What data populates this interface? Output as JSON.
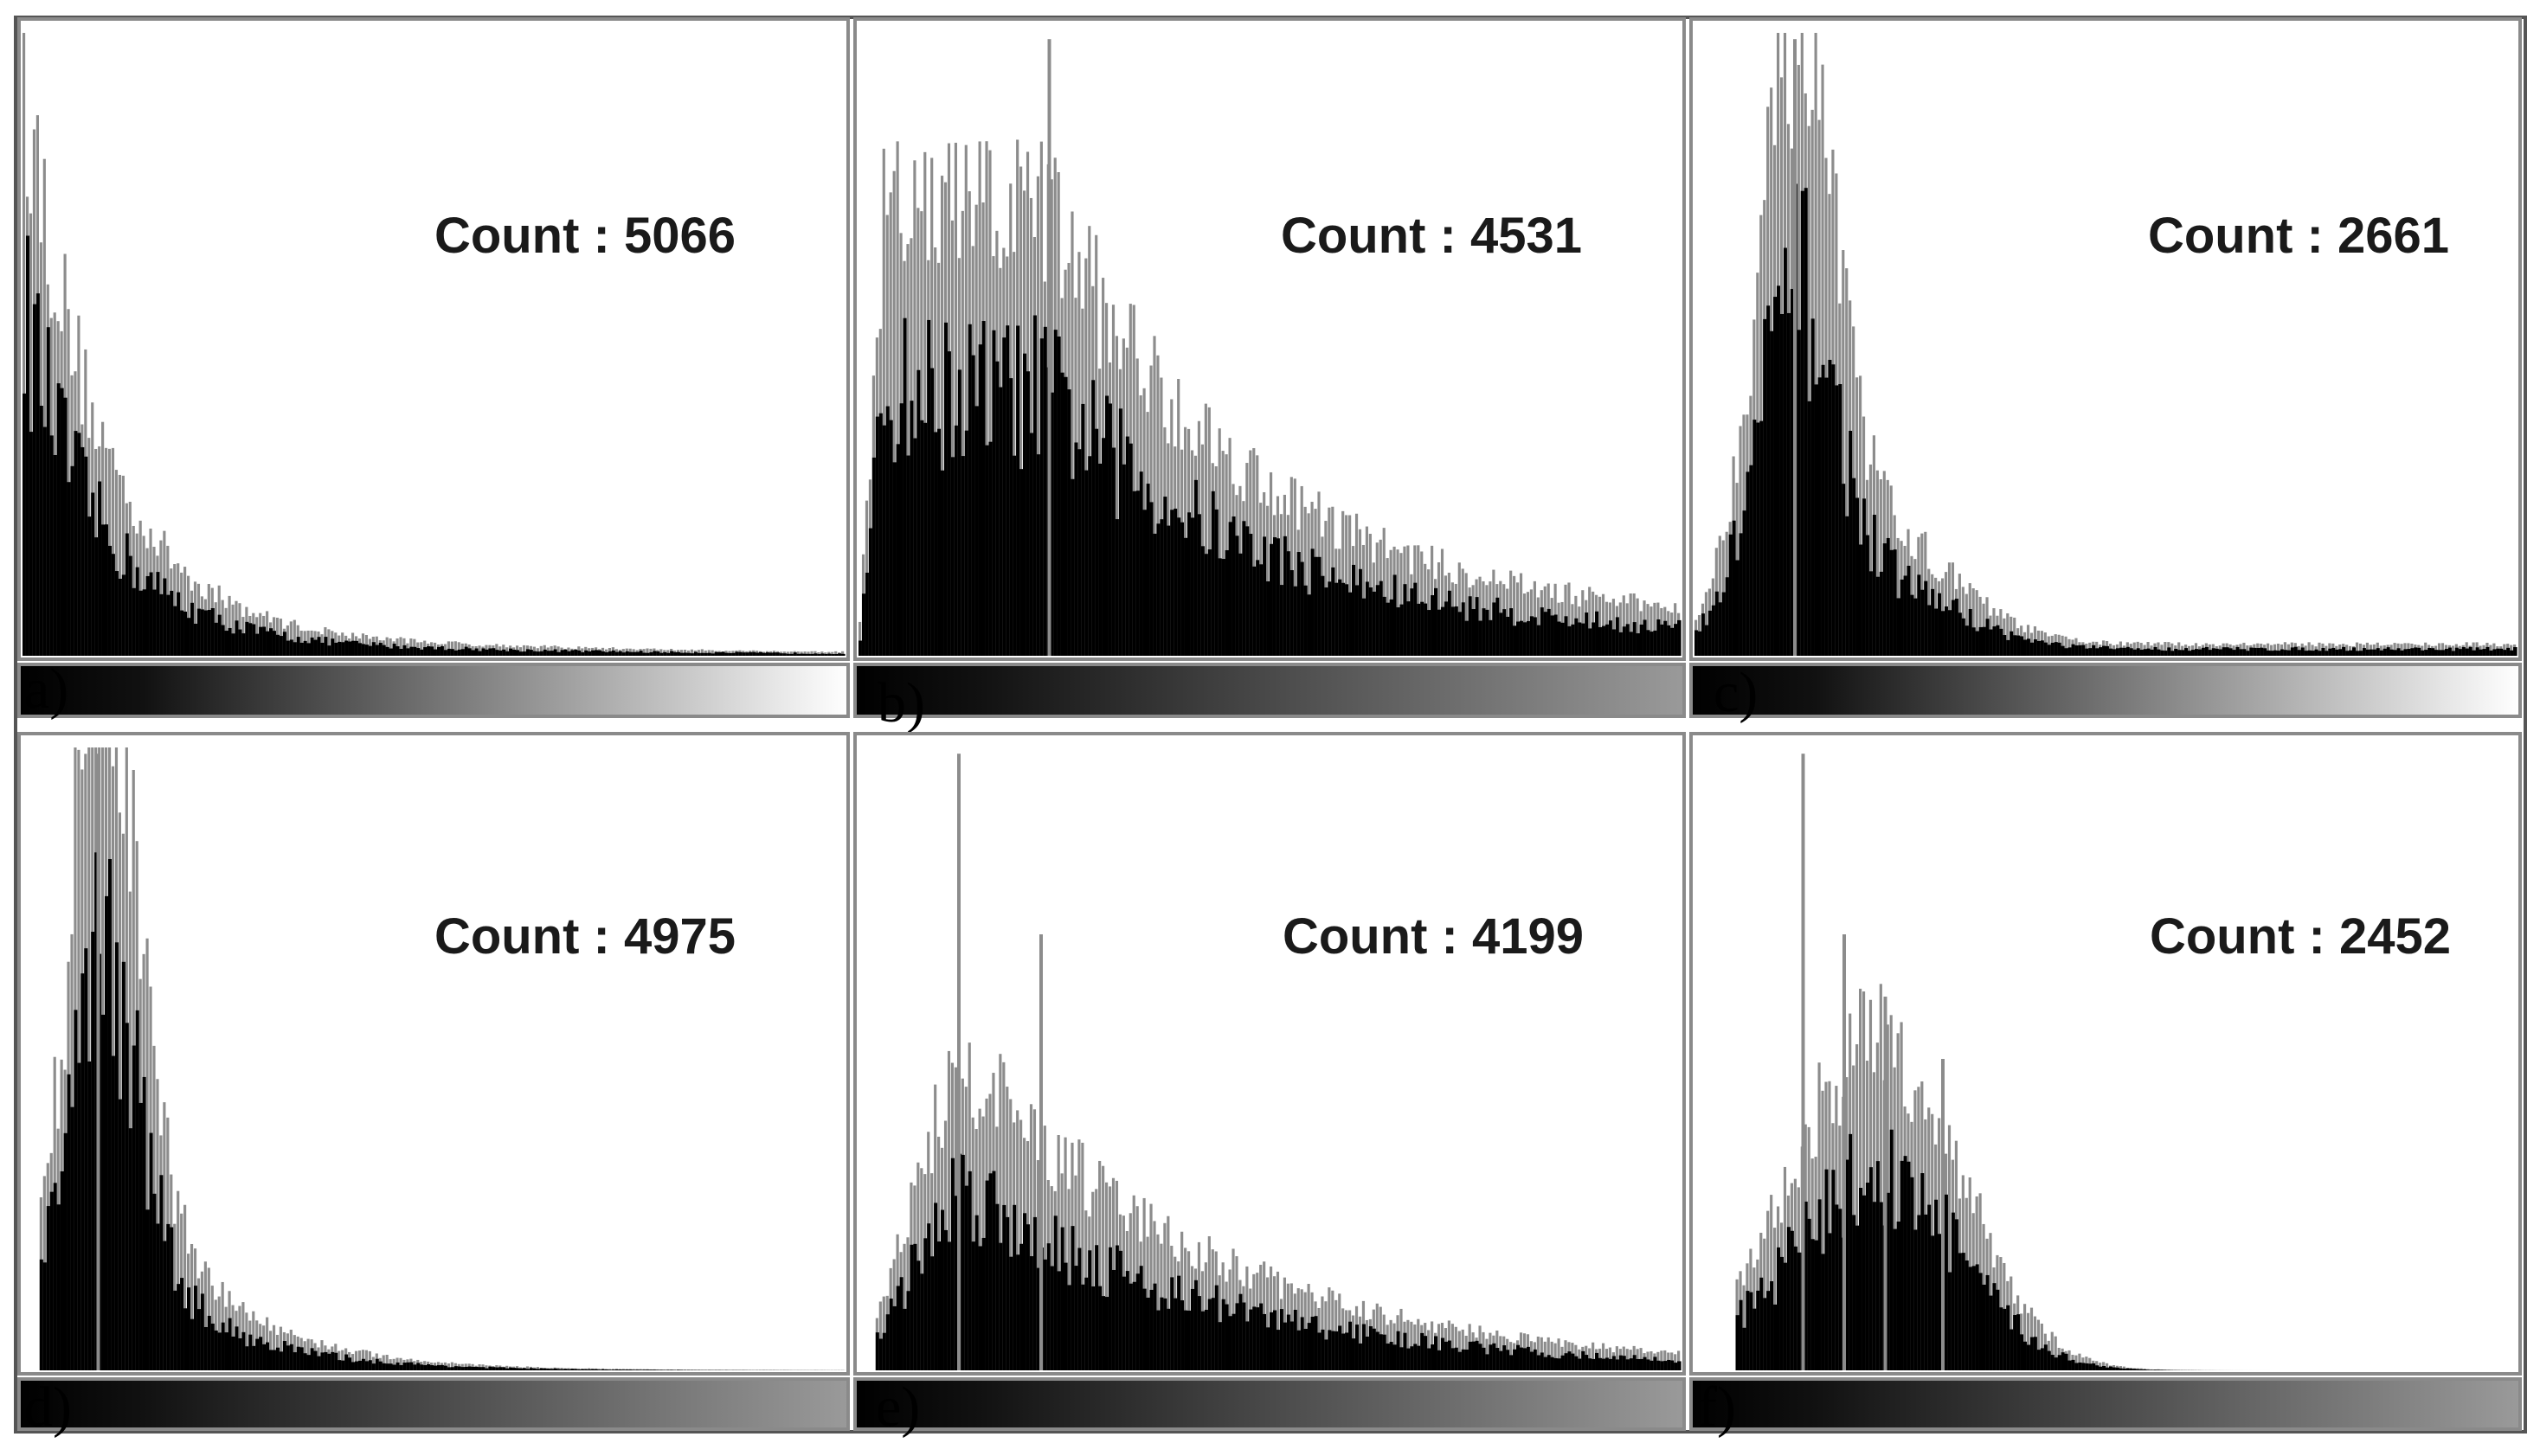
{
  "chart_data": [
    {
      "type": "bar",
      "panel_label": "a)",
      "annotation": "Count : 5066",
      "count": 5066,
      "x_range": [
        0,
        255
      ],
      "shape": "right-skewed, peak near low intensities",
      "overlay": "gray spikes above black body",
      "gradient_bar": "black-to-white"
    },
    {
      "type": "bar",
      "panel_label": "b)",
      "annotation": "Count : 4531",
      "count": 4531,
      "x_range": [
        0,
        255
      ],
      "shape": "broad hump in lower third with long tail",
      "overlay": "gray spikes above black body",
      "gradient_bar": "black-to-gray"
    },
    {
      "type": "bar",
      "panel_label": "c)",
      "annotation": "Count : 2661",
      "count": 2661,
      "x_range": [
        0,
        255
      ],
      "shape": "narrow peak near low intensities",
      "overlay": "gray spikes above black body",
      "gradient_bar": "black-to-white"
    },
    {
      "type": "bar",
      "panel_label": "d)",
      "annotation": "Count : 4975",
      "count": 4975,
      "x_range": [
        0,
        255
      ],
      "shape": "comb-like right-skewed, peak near low intensities",
      "overlay": "gray comb teeth over black body",
      "gradient_bar": "black-to-gray"
    },
    {
      "type": "bar",
      "panel_label": "e)",
      "annotation": "Count : 4199",
      "count": 4199,
      "x_range": [
        0,
        255
      ],
      "shape": "broad hump with decaying tail",
      "overlay": "gray spikes above black body",
      "gradient_bar": "black-to-gray"
    },
    {
      "type": "bar",
      "panel_label": "f)",
      "annotation": "Count : 2452",
      "count": 2452,
      "x_range": [
        0,
        255
      ],
      "shape": "hump centred in lower half",
      "overlay": "gray spikes above black body",
      "gradient_bar": "black-to-gray"
    }
  ],
  "colors": {
    "body": "#000000",
    "overlay": "#8c8c8c",
    "frame": "#8a8a8a",
    "background": "#ffffff"
  }
}
